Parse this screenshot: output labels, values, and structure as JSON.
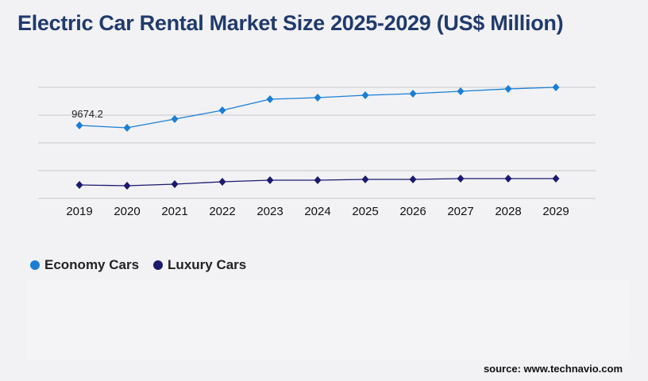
{
  "title": "Electric Car Rental Market Size 2025-2029 (US$ Million)",
  "source": "source: www.technavio.com",
  "chart_data": {
    "type": "line",
    "title": "Electric Car Rental Market Size 2025-2029 (US$ Million)",
    "x": [
      "2019",
      "2020",
      "2021",
      "2022",
      "2023",
      "2024",
      "2025",
      "2026",
      "2027",
      "2028",
      "2029"
    ],
    "ylim": [
      0,
      14721
    ],
    "grid": true,
    "legend_placement": "bottom-left",
    "series": [
      {
        "name": "Economy Cars",
        "color": "#1a7fd4",
        "values": [
          9674.2,
          9358,
          10515,
          11672,
          13144,
          13354,
          13670,
          13880,
          14195,
          14511,
          14721
        ]
      },
      {
        "name": "Luxury Cars",
        "color": "#1a1a6e",
        "values": [
          1788,
          1682,
          1893,
          2208,
          2418,
          2418,
          2524,
          2524,
          2629,
          2629,
          2629
        ]
      }
    ],
    "annotations": [
      {
        "series": 0,
        "index": 0,
        "text": "9674.2"
      }
    ]
  }
}
